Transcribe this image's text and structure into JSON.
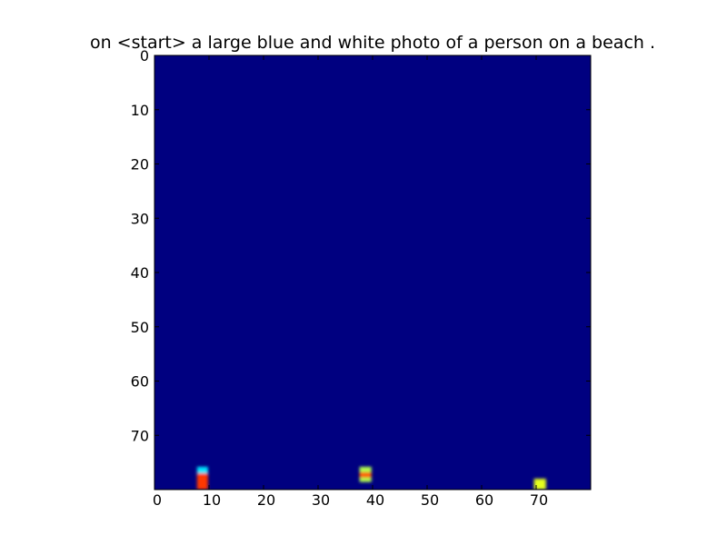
{
  "chart_data": {
    "type": "heatmap",
    "title": "on <start> a large blue and white photo of a person on a beach .",
    "xlabel": "",
    "ylabel": "",
    "xlim": [
      0,
      80
    ],
    "ylim": [
      80,
      0
    ],
    "x_ticks": [
      "0",
      "10",
      "20",
      "30",
      "40",
      "50",
      "60",
      "70"
    ],
    "y_ticks": [
      "0",
      "10",
      "20",
      "30",
      "40",
      "50",
      "60",
      "70"
    ],
    "grid": false,
    "colormap": "jet",
    "background_value": 0.0,
    "hotspots": [
      {
        "x_range": [
          7.8,
          9.8
        ],
        "y_range": [
          75.8,
          77.6
        ],
        "value": 0.35
      },
      {
        "x_range": [
          7.8,
          9.8
        ],
        "y_range": [
          77.0,
          80.0
        ],
        "value": 0.82
      },
      {
        "x_range": [
          37.6,
          39.8
        ],
        "y_range": [
          75.8,
          76.8
        ],
        "value": 0.55
      },
      {
        "x_range": [
          37.6,
          39.8
        ],
        "y_range": [
          76.8,
          77.8
        ],
        "value": 0.78
      },
      {
        "x_range": [
          37.6,
          39.8
        ],
        "y_range": [
          77.8,
          78.6
        ],
        "value": 0.55
      },
      {
        "x_range": [
          69.6,
          71.8
        ],
        "y_range": [
          78.0,
          80.0
        ],
        "value": 0.6
      }
    ]
  }
}
